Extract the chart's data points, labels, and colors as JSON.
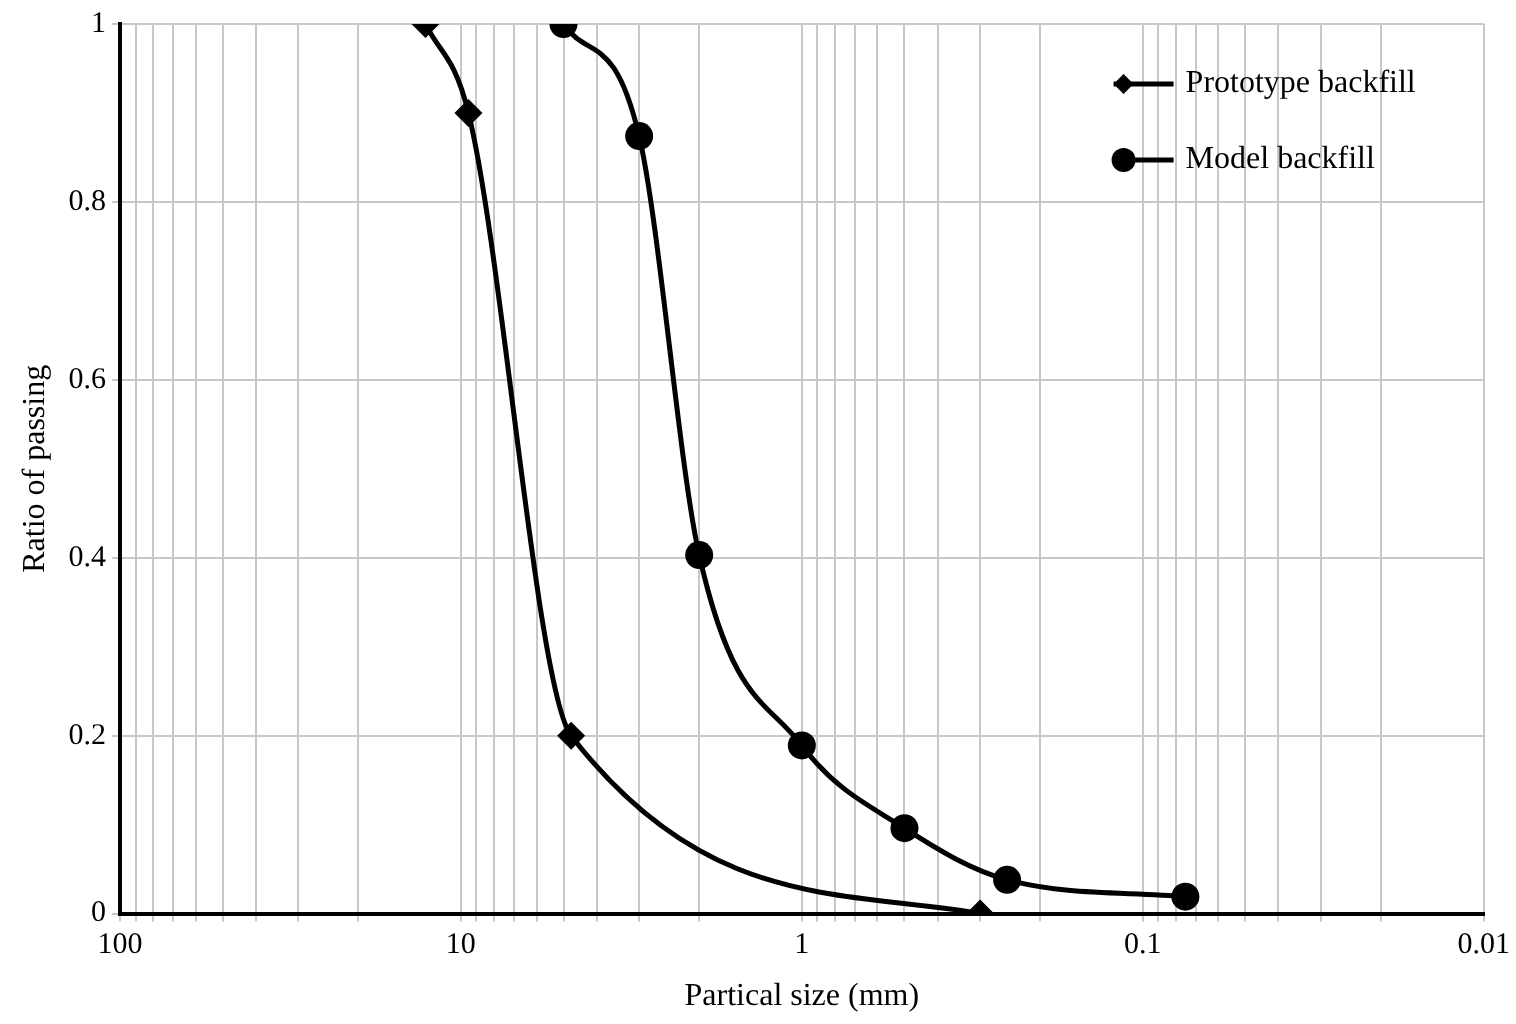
{
  "chart_data": {
    "type": "line",
    "xlabel": "Partical size (mm)",
    "ylabel": "Ratio of passing",
    "log": "x",
    "xlim": [
      100,
      0.01
    ],
    "ylim": [
      0,
      1
    ],
    "xticks": [
      100,
      {
        "value": 90,
        "label": null
      },
      {
        "value": 80,
        "label": null
      },
      {
        "value": 70,
        "label": null
      },
      {
        "value": 60,
        "label": null
      },
      {
        "value": 50,
        "label": null
      },
      {
        "value": 40,
        "label": null
      },
      {
        "value": 30,
        "label": null
      },
      {
        "value": 20,
        "label": null
      },
      10,
      {
        "value": 9,
        "label": null
      },
      {
        "value": 8,
        "label": null
      },
      {
        "value": 7,
        "label": null
      },
      {
        "value": 6,
        "label": null
      },
      {
        "value": 5,
        "label": null
      },
      {
        "value": 4,
        "label": null
      },
      {
        "value": 3,
        "label": null
      },
      {
        "value": 2,
        "label": null
      },
      1,
      {
        "value": 0.9,
        "label": null
      },
      {
        "value": 0.8,
        "label": null
      },
      {
        "value": 0.7,
        "label": null
      },
      {
        "value": 0.6,
        "label": null
      },
      {
        "value": 0.5,
        "label": null
      },
      {
        "value": 0.4,
        "label": null
      },
      {
        "value": 0.3,
        "label": null
      },
      {
        "value": 0.2,
        "label": null
      },
      0.1,
      {
        "value": 0.09,
        "label": null
      },
      {
        "value": 0.08,
        "label": null
      },
      {
        "value": 0.07,
        "label": null
      },
      {
        "value": 0.06,
        "label": null
      },
      {
        "value": 0.05,
        "label": null
      },
      {
        "value": 0.04,
        "label": null
      },
      {
        "value": 0.03,
        "label": null
      },
      {
        "value": 0.02,
        "label": null
      },
      0.01
    ],
    "yticks": [
      0,
      0.2,
      0.4,
      0.6,
      0.8,
      1
    ],
    "grid": true,
    "legend": "top right",
    "line_style": "solid",
    "series": [
      {
        "name": "Prototype backfill",
        "color": "#000000",
        "marker": "diamond",
        "x": [
          12.7,
          9.5,
          4.75,
          0.3
        ],
        "values": [
          1,
          0.9,
          0.2,
          0
        ]
      },
      {
        "name": "Model backfill",
        "color": "#000000",
        "marker": "circle",
        "x": [
          5,
          3,
          2,
          1,
          0.5,
          0.25,
          0.075
        ],
        "values": [
          1,
          0.874,
          0.403,
          0.189,
          0.096,
          0.038,
          0.019
        ]
      }
    ]
  }
}
